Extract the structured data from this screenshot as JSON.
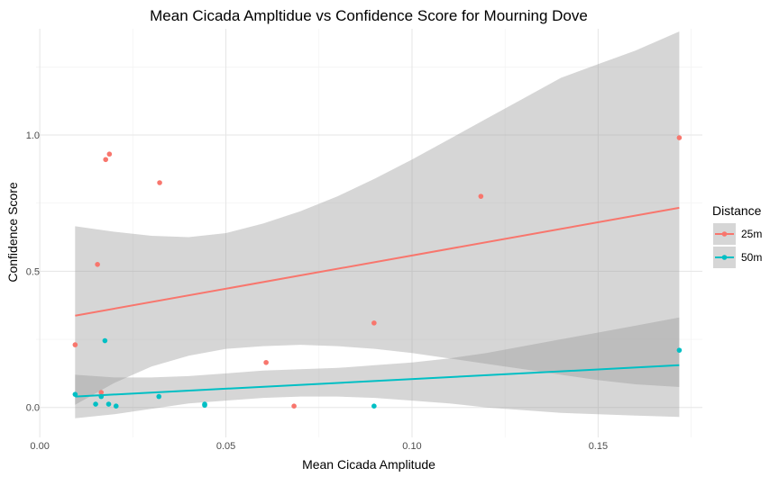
{
  "chart_data": {
    "type": "scatter",
    "title": "Mean Cicada Ampltidue vs Confidence Score for Mourning Dove",
    "xlabel": "Mean Cicada Amplitude",
    "ylabel": "Confidence Score",
    "xlim": [
      -0.001,
      0.178
    ],
    "ylim": [
      -0.11,
      1.39
    ],
    "x_ticks": [
      {
        "value": 0.0,
        "label": "0.00"
      },
      {
        "value": 0.05,
        "label": "0.05"
      },
      {
        "value": 0.1,
        "label": "0.10"
      },
      {
        "value": 0.15,
        "label": "0.15"
      }
    ],
    "y_ticks": [
      {
        "value": 0.0,
        "label": "0.0"
      },
      {
        "value": 0.5,
        "label": "0.5"
      },
      {
        "value": 1.0,
        "label": "1.0"
      }
    ],
    "grid": true,
    "legend": {
      "title": "Distance",
      "position": "right"
    },
    "series": [
      {
        "name": "25m",
        "color": "#F8766D",
        "points": [
          {
            "x": 0.0095,
            "y": 0.23
          },
          {
            "x": 0.0155,
            "y": 0.525
          },
          {
            "x": 0.0165,
            "y": 0.055
          },
          {
            "x": 0.0177,
            "y": 0.91
          },
          {
            "x": 0.0187,
            "y": 0.93
          },
          {
            "x": 0.0322,
            "y": 0.825
          },
          {
            "x": 0.0608,
            "y": 0.165
          },
          {
            "x": 0.0683,
            "y": 0.005
          },
          {
            "x": 0.0898,
            "y": 0.31
          },
          {
            "x": 0.1185,
            "y": 0.775
          },
          {
            "x": 0.1718,
            "y": 0.99
          }
        ],
        "fit": {
          "x": [
            0.0095,
            0.1718
          ],
          "y": [
            0.337,
            0.733
          ]
        },
        "ribbon": {
          "x": [
            0.0095,
            0.02,
            0.03,
            0.04,
            0.05,
            0.06,
            0.07,
            0.08,
            0.09,
            0.1,
            0.11,
            0.12,
            0.13,
            0.14,
            0.15,
            0.16,
            0.1718
          ],
          "lower": [
            0.01,
            0.09,
            0.15,
            0.19,
            0.215,
            0.225,
            0.23,
            0.225,
            0.215,
            0.2,
            0.18,
            0.16,
            0.14,
            0.12,
            0.1,
            0.085,
            0.075
          ],
          "upper": [
            0.665,
            0.645,
            0.63,
            0.625,
            0.64,
            0.675,
            0.72,
            0.775,
            0.84,
            0.91,
            0.985,
            1.06,
            1.135,
            1.21,
            1.26,
            1.31,
            1.38
          ]
        }
      },
      {
        "name": "50m",
        "color": "#00BFC4",
        "points": [
          {
            "x": 0.0095,
            "y": 0.048
          },
          {
            "x": 0.015,
            "y": 0.012
          },
          {
            "x": 0.0165,
            "y": 0.04
          },
          {
            "x": 0.0175,
            "y": 0.245
          },
          {
            "x": 0.0185,
            "y": 0.012
          },
          {
            "x": 0.0205,
            "y": 0.005
          },
          {
            "x": 0.032,
            "y": 0.04
          },
          {
            "x": 0.0443,
            "y": 0.012
          },
          {
            "x": 0.0443,
            "y": 0.008
          },
          {
            "x": 0.0898,
            "y": 0.005
          },
          {
            "x": 0.1718,
            "y": 0.21
          }
        ],
        "fit": {
          "x": [
            0.0095,
            0.1718
          ],
          "y": [
            0.04,
            0.155
          ]
        },
        "ribbon": {
          "x": [
            0.0095,
            0.02,
            0.03,
            0.04,
            0.05,
            0.06,
            0.07,
            0.08,
            0.09,
            0.1,
            0.11,
            0.12,
            0.13,
            0.14,
            0.15,
            0.16,
            0.1718
          ],
          "lower": [
            -0.04,
            -0.025,
            -0.005,
            0.015,
            0.025,
            0.035,
            0.04,
            0.04,
            0.035,
            0.025,
            0.015,
            0.0,
            -0.01,
            -0.02,
            -0.025,
            -0.03,
            -0.035
          ],
          "upper": [
            0.12,
            0.11,
            0.11,
            0.115,
            0.125,
            0.135,
            0.14,
            0.145,
            0.155,
            0.165,
            0.18,
            0.2,
            0.225,
            0.25,
            0.275,
            0.3,
            0.33
          ]
        }
      }
    ]
  }
}
